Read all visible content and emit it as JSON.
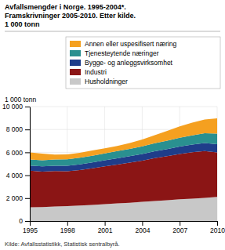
{
  "chart_data": {
    "type": "area",
    "stacked": true,
    "title": "Avfallsmengder i Norge. 1995-2004*.",
    "subtitle": [
      "Framskrivninger 2005-2010. Etter kilde.",
      "1 000 tonn"
    ],
    "ylabel": "1 000 tonn",
    "source": "Kilde: Avfallsstatistikk, Statistisk sentralbyrå.",
    "x": [
      1995,
      1996,
      1997,
      1998,
      1999,
      2000,
      2001,
      2002,
      2003,
      2004,
      2005,
      2006,
      2007,
      2008,
      2009,
      2010
    ],
    "series": [
      {
        "name": "Husholdninger",
        "color": "#c8c8c8",
        "values": [
          1200,
          1220,
          1260,
          1300,
          1350,
          1400,
          1480,
          1540,
          1600,
          1680,
          1750,
          1820,
          1900,
          1960,
          2020,
          2100
        ]
      },
      {
        "name": "Industri",
        "color": "#8b1515",
        "values": [
          3200,
          3100,
          3100,
          3050,
          3100,
          3200,
          3300,
          3400,
          3500,
          3600,
          3750,
          3850,
          3950,
          4050,
          4100,
          3900
        ]
      },
      {
        "name": "Bygge- og anleggsvirksomhet",
        "color": "#1f3d8a",
        "values": [
          450,
          460,
          470,
          480,
          500,
          520,
          530,
          545,
          560,
          580,
          600,
          620,
          650,
          670,
          690,
          710
        ]
      },
      {
        "name": "Tjenesteytende næringer",
        "color": "#2a9090",
        "values": [
          520,
          530,
          545,
          560,
          575,
          590,
          605,
          620,
          640,
          660,
          700,
          730,
          770,
          810,
          860,
          920
        ]
      },
      {
        "name": "Annen eller uspesifisert næring",
        "color": "#f5a020",
        "values": [
          620,
          580,
          430,
          430,
          430,
          450,
          430,
          460,
          510,
          600,
          700,
          850,
          1000,
          1100,
          1200,
          1350
        ]
      }
    ],
    "xlim": [
      1995,
      2010
    ],
    "xticks": [
      1995,
      1998,
      2001,
      2004,
      2007,
      2010
    ],
    "ylim": [
      0,
      10000
    ],
    "yticks": [
      0,
      {
        "value": 2000,
        "label": "2 000"
      },
      {
        "value": 4000,
        "label": "4 000"
      },
      {
        "value": 6000,
        "label": "6 000"
      },
      {
        "value": 8000,
        "label": "8 000"
      },
      {
        "value": 10000,
        "label": "10 000"
      }
    ],
    "grid": true,
    "legend": "top"
  }
}
